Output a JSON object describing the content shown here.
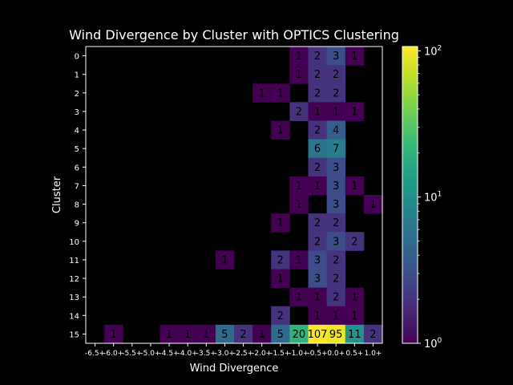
{
  "chart_data": {
    "type": "heatmap",
    "title": "Wind Divergence by Cluster with OPTICS Clustering",
    "xlabel": "Wind Divergence",
    "ylabel": "Cluster",
    "x_categories": [
      "-6.5+",
      "-6.0+",
      "-5.5+",
      "-5.0+",
      "-4.5+",
      "-4.0+",
      "-3.5+",
      "-3.0+",
      "-2.5+",
      "-2.0+",
      "-1.5+",
      "-1.0+",
      "-0.5+",
      "0.0+",
      "0.5+",
      "1.0+"
    ],
    "y_categories": [
      "0",
      "1",
      "2",
      "3",
      "4",
      "5",
      "6",
      "7",
      "8",
      "9",
      "10",
      "11",
      "12",
      "13",
      "14",
      "15"
    ],
    "cells": [
      {
        "y": "0",
        "x": "-1.0+",
        "value": 1
      },
      {
        "y": "0",
        "x": "-0.5+",
        "value": 2
      },
      {
        "y": "0",
        "x": "0.0+",
        "value": 3
      },
      {
        "y": "0",
        "x": "0.5+",
        "value": 1
      },
      {
        "y": "1",
        "x": "-1.0+",
        "value": 1
      },
      {
        "y": "1",
        "x": "-0.5+",
        "value": 2
      },
      {
        "y": "1",
        "x": "0.0+",
        "value": 2
      },
      {
        "y": "2",
        "x": "-2.0+",
        "value": 1
      },
      {
        "y": "2",
        "x": "-1.5+",
        "value": 1
      },
      {
        "y": "2",
        "x": "-0.5+",
        "value": 2
      },
      {
        "y": "2",
        "x": "0.0+",
        "value": 2
      },
      {
        "y": "3",
        "x": "-1.0+",
        "value": 2
      },
      {
        "y": "3",
        "x": "-0.5+",
        "value": 1
      },
      {
        "y": "3",
        "x": "0.0+",
        "value": 1
      },
      {
        "y": "3",
        "x": "0.5+",
        "value": 1
      },
      {
        "y": "4",
        "x": "-1.5+",
        "value": 1
      },
      {
        "y": "4",
        "x": "-0.5+",
        "value": 2
      },
      {
        "y": "4",
        "x": "0.0+",
        "value": 4
      },
      {
        "y": "5",
        "x": "-0.5+",
        "value": 6
      },
      {
        "y": "5",
        "x": "0.0+",
        "value": 7
      },
      {
        "y": "6",
        "x": "-0.5+",
        "value": 2
      },
      {
        "y": "6",
        "x": "0.0+",
        "value": 3
      },
      {
        "y": "7",
        "x": "-1.0+",
        "value": 1
      },
      {
        "y": "7",
        "x": "-0.5+",
        "value": 1
      },
      {
        "y": "7",
        "x": "0.0+",
        "value": 3
      },
      {
        "y": "7",
        "x": "0.5+",
        "value": 1
      },
      {
        "y": "8",
        "x": "-1.0+",
        "value": 1
      },
      {
        "y": "8",
        "x": "0.0+",
        "value": 3
      },
      {
        "y": "8",
        "x": "1.0+",
        "value": 1
      },
      {
        "y": "9",
        "x": "-1.5+",
        "value": 1
      },
      {
        "y": "9",
        "x": "-0.5+",
        "value": 2
      },
      {
        "y": "9",
        "x": "0.0+",
        "value": 2
      },
      {
        "y": "10",
        "x": "-0.5+",
        "value": 2
      },
      {
        "y": "10",
        "x": "0.0+",
        "value": 3
      },
      {
        "y": "10",
        "x": "0.5+",
        "value": 2
      },
      {
        "y": "11",
        "x": "-3.0+",
        "value": 1
      },
      {
        "y": "11",
        "x": "-1.5+",
        "value": 2
      },
      {
        "y": "11",
        "x": "-1.0+",
        "value": 1
      },
      {
        "y": "11",
        "x": "-0.5+",
        "value": 3
      },
      {
        "y": "11",
        "x": "0.0+",
        "value": 2
      },
      {
        "y": "12",
        "x": "-1.5+",
        "value": 1
      },
      {
        "y": "12",
        "x": "-0.5+",
        "value": 3
      },
      {
        "y": "12",
        "x": "0.0+",
        "value": 2
      },
      {
        "y": "13",
        "x": "-1.0+",
        "value": 1
      },
      {
        "y": "13",
        "x": "-0.5+",
        "value": 1
      },
      {
        "y": "13",
        "x": "0.0+",
        "value": 2
      },
      {
        "y": "13",
        "x": "0.5+",
        "value": 1
      },
      {
        "y": "14",
        "x": "-1.5+",
        "value": 2
      },
      {
        "y": "14",
        "x": "-0.5+",
        "value": 1
      },
      {
        "y": "14",
        "x": "0.0+",
        "value": 1
      },
      {
        "y": "14",
        "x": "0.5+",
        "value": 1
      },
      {
        "y": "15",
        "x": "-6.0+",
        "value": 1
      },
      {
        "y": "15",
        "x": "-4.5+",
        "value": 1
      },
      {
        "y": "15",
        "x": "-4.0+",
        "value": 1
      },
      {
        "y": "15",
        "x": "-3.5+",
        "value": 1
      },
      {
        "y": "15",
        "x": "-3.0+",
        "value": 5
      },
      {
        "y": "15",
        "x": "-2.5+",
        "value": 2
      },
      {
        "y": "15",
        "x": "-2.0+",
        "value": 1
      },
      {
        "y": "15",
        "x": "-1.5+",
        "value": 5
      },
      {
        "y": "15",
        "x": "-1.0+",
        "value": 20
      },
      {
        "y": "15",
        "x": "-0.5+",
        "value": 107
      },
      {
        "y": "15",
        "x": "0.0+",
        "value": 95
      },
      {
        "y": "15",
        "x": "0.5+",
        "value": 11
      },
      {
        "y": "15",
        "x": "1.0+",
        "value": 2
      }
    ],
    "colorbar": {
      "scale": "log",
      "range": [
        1,
        107
      ],
      "colormap": "viridis",
      "ticks": [
        {
          "base": "10",
          "exp": "0",
          "value": 1
        },
        {
          "base": "10",
          "exp": "1",
          "value": 10
        },
        {
          "base": "10",
          "exp": "2",
          "value": 100
        }
      ]
    },
    "background": "#000000",
    "foreground": "#ffffff",
    "cell_text_color": "#000000"
  }
}
